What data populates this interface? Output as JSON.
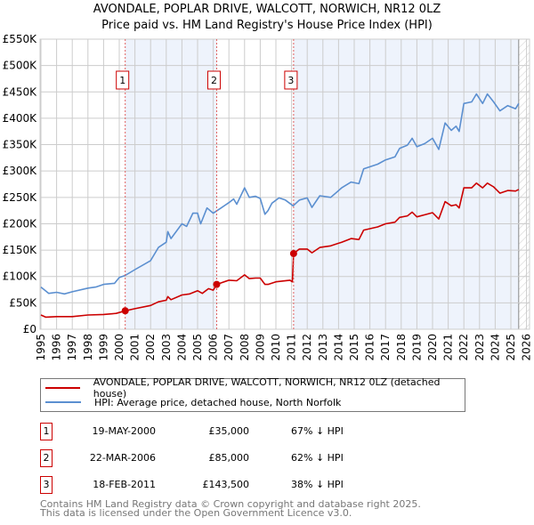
{
  "title_line1": "AVONDALE, POPLAR DRIVE, WALCOTT, NORWICH, NR12 0LZ",
  "title_line2": "Price paid vs. HM Land Registry's House Price Index (HPI)",
  "legend": [
    {
      "label": "AVONDALE, POPLAR DRIVE, WALCOTT, NORWICH, NR12 0LZ (detached house)",
      "color": "#cc0000"
    },
    {
      "label": "HPI: Average price, detached house, North Norfolk",
      "color": "#5b8fd0"
    }
  ],
  "sales": [
    {
      "num": "1",
      "date": "19-MAY-2000",
      "price": "£35,000",
      "hpi": "67% ↓ HPI",
      "year": 2000.38,
      "value": 35
    },
    {
      "num": "2",
      "date": "22-MAR-2006",
      "price": "£85,000",
      "hpi": "62% ↓ HPI",
      "year": 2006.22,
      "value": 85
    },
    {
      "num": "3",
      "date": "18-FEB-2011",
      "price": "£143,500",
      "hpi": "38% ↓ HPI",
      "year": 2011.13,
      "value": 143.5
    }
  ],
  "footer_line1": "Contains HM Land Registry data © Crown copyright and database right 2025.",
  "footer_line2": "This data is licensed under the Open Government Licence v3.0.",
  "chart_data": {
    "type": "line",
    "title": "AVONDALE, POPLAR DRIVE, WALCOTT, NORWICH, NR12 0LZ — Price paid vs. HM Land Registry's House Price Index (HPI)",
    "xlabel": "",
    "ylabel": "",
    "xlim": [
      1995,
      2026
    ],
    "ylim": [
      0,
      550
    ],
    "y_unit": "£K",
    "y_ticks": [
      0,
      50,
      100,
      150,
      200,
      250,
      300,
      350,
      400,
      450,
      500,
      550
    ],
    "y_tick_labels": [
      "£0",
      "£50K",
      "£100K",
      "£150K",
      "£200K",
      "£250K",
      "£300K",
      "£350K",
      "£400K",
      "£450K",
      "£500K",
      "£550K"
    ],
    "x_ticks": [
      "1995",
      "1996",
      "1997",
      "1998",
      "1999",
      "2000",
      "2001",
      "2002",
      "2003",
      "2004",
      "2005",
      "2006",
      "2007",
      "2008",
      "2009",
      "2010",
      "2011",
      "2012",
      "2013",
      "2014",
      "2015",
      "2016",
      "2017",
      "2018",
      "2019",
      "2020",
      "2021",
      "2022",
      "2023",
      "2024",
      "2025",
      "2026"
    ],
    "grid": true,
    "data_end_year": 2025.5,
    "series": [
      {
        "name": "AVONDALE, POPLAR DRIVE, WALCOTT, NORWICH, NR12 0LZ (detached house)",
        "color": "#cc0000",
        "points": [
          [
            1995,
            27
          ],
          [
            1995.3,
            23
          ],
          [
            1996,
            24
          ],
          [
            1997,
            24
          ],
          [
            1998,
            27
          ],
          [
            1999,
            28
          ],
          [
            1999.8,
            30
          ],
          [
            2000.38,
            35
          ],
          [
            2001,
            39
          ],
          [
            2002,
            45
          ],
          [
            2002.5,
            52
          ],
          [
            2003,
            55
          ],
          [
            2003.1,
            62
          ],
          [
            2003.3,
            56
          ],
          [
            2004,
            65
          ],
          [
            2004.5,
            67
          ],
          [
            2005,
            73
          ],
          [
            2005.3,
            68
          ],
          [
            2005.7,
            77
          ],
          [
            2006,
            74
          ],
          [
            2006.22,
            85
          ],
          [
            2007,
            93
          ],
          [
            2007.5,
            92
          ],
          [
            2008,
            103
          ],
          [
            2008.3,
            96
          ],
          [
            2008.7,
            97
          ],
          [
            2009,
            97
          ],
          [
            2009.3,
            85
          ],
          [
            2009.5,
            85
          ],
          [
            2010,
            90
          ],
          [
            2010.9,
            93
          ],
          [
            2011.05,
            90
          ],
          [
            2011.13,
            143.5
          ],
          [
            2011.5,
            152
          ],
          [
            2012,
            152
          ],
          [
            2012.3,
            145
          ],
          [
            2012.8,
            155
          ],
          [
            2013.5,
            158
          ],
          [
            2014.2,
            165
          ],
          [
            2014.8,
            172
          ],
          [
            2015.3,
            170
          ],
          [
            2015.6,
            188
          ],
          [
            2016.5,
            194
          ],
          [
            2017,
            200
          ],
          [
            2017.6,
            203
          ],
          [
            2017.9,
            212
          ],
          [
            2018.4,
            215
          ],
          [
            2018.7,
            222
          ],
          [
            2019,
            213
          ],
          [
            2019.5,
            217
          ],
          [
            2020,
            221
          ],
          [
            2020.4,
            209
          ],
          [
            2020.8,
            242
          ],
          [
            2021.2,
            234
          ],
          [
            2021.5,
            236
          ],
          [
            2021.7,
            230
          ],
          [
            2022,
            268
          ],
          [
            2022.5,
            268
          ],
          [
            2022.8,
            277
          ],
          [
            2023.2,
            268
          ],
          [
            2023.5,
            277
          ],
          [
            2023.9,
            270
          ],
          [
            2024.3,
            258
          ],
          [
            2024.8,
            263
          ],
          [
            2025.3,
            262
          ],
          [
            2025.5,
            265
          ]
        ]
      },
      {
        "name": "HPI: Average price, detached house, North Norfolk",
        "color": "#5b8fd0",
        "points": [
          [
            1995,
            80
          ],
          [
            1995.5,
            68
          ],
          [
            1996,
            70
          ],
          [
            1996.5,
            67
          ],
          [
            1997,
            71
          ],
          [
            1998,
            78
          ],
          [
            1998.5,
            80
          ],
          [
            1999,
            85
          ],
          [
            1999.7,
            87
          ],
          [
            2000,
            98
          ],
          [
            2000.38,
            102
          ],
          [
            2001,
            113
          ],
          [
            2002,
            130
          ],
          [
            2002.5,
            155
          ],
          [
            2003,
            165
          ],
          [
            2003.1,
            185
          ],
          [
            2003.3,
            172
          ],
          [
            2004,
            200
          ],
          [
            2004.3,
            195
          ],
          [
            2004.7,
            220
          ],
          [
            2005,
            220
          ],
          [
            2005.2,
            200
          ],
          [
            2005.6,
            230
          ],
          [
            2006,
            220
          ],
          [
            2006.5,
            230
          ],
          [
            2007,
            240
          ],
          [
            2007.3,
            247
          ],
          [
            2007.5,
            237
          ],
          [
            2008,
            268
          ],
          [
            2008.3,
            250
          ],
          [
            2008.7,
            252
          ],
          [
            2009,
            248
          ],
          [
            2009.3,
            218
          ],
          [
            2009.5,
            225
          ],
          [
            2009.75,
            239
          ],
          [
            2010.2,
            249
          ],
          [
            2010.6,
            245
          ],
          [
            2011.1,
            234
          ],
          [
            2011.5,
            245
          ],
          [
            2012,
            249
          ],
          [
            2012.3,
            231
          ],
          [
            2012.8,
            253
          ],
          [
            2013.5,
            250
          ],
          [
            2014.2,
            268
          ],
          [
            2014.8,
            279
          ],
          [
            2015.3,
            276
          ],
          [
            2015.6,
            304
          ],
          [
            2016.5,
            313
          ],
          [
            2017,
            321
          ],
          [
            2017.6,
            327
          ],
          [
            2017.9,
            343
          ],
          [
            2018.4,
            349
          ],
          [
            2018.7,
            362
          ],
          [
            2019,
            346
          ],
          [
            2019.5,
            352
          ],
          [
            2020,
            362
          ],
          [
            2020.4,
            341
          ],
          [
            2020.8,
            391
          ],
          [
            2021.2,
            377
          ],
          [
            2021.5,
            385
          ],
          [
            2021.7,
            375
          ],
          [
            2022,
            428
          ],
          [
            2022.5,
            431
          ],
          [
            2022.8,
            446
          ],
          [
            2023.2,
            428
          ],
          [
            2023.5,
            446
          ],
          [
            2023.9,
            431
          ],
          [
            2024.3,
            414
          ],
          [
            2024.8,
            424
          ],
          [
            2025.3,
            418
          ],
          [
            2025.5,
            428
          ]
        ]
      }
    ]
  }
}
